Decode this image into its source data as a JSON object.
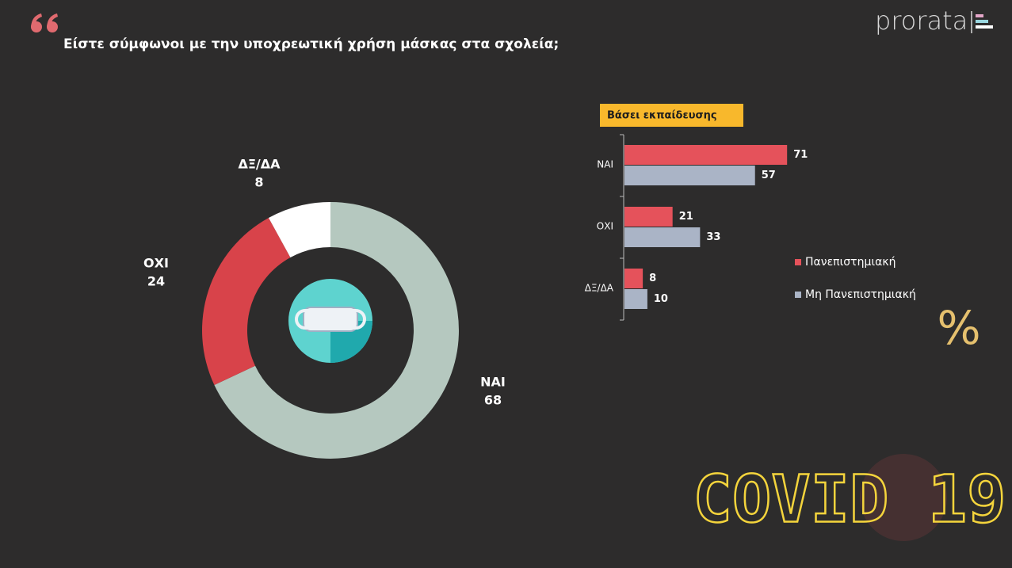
{
  "title": "Είστε σύμφωνοι με την υποχρεωτική χρήση μάσκας στα σχολεία;",
  "brand": "prorata",
  "percent_icon": "%",
  "badge": "COVID 19",
  "chart_data": [
    {
      "type": "donut",
      "categories": [
        "ΝΑΙ",
        "ΟΧΙ",
        "ΔΞ/ΔΑ"
      ],
      "values": [
        68,
        24,
        8
      ],
      "colors": [
        "#b5c8bf",
        "#d8434a",
        "#ffffff"
      ]
    },
    {
      "type": "hbar",
      "subtitle": "Βάσει εκπαίδευσης",
      "categories": [
        "ΝΑΙ",
        "ΟΧΙ",
        "ΔΞ/ΔΑ"
      ],
      "series": [
        {
          "name": "Πανεπιστημιακή",
          "color": "#e5525b",
          "values": [
            71,
            21,
            8
          ]
        },
        {
          "name": "Μη Πανεπιστημιακή",
          "color": "#aab4c6",
          "values": [
            57,
            33,
            10
          ]
        }
      ]
    }
  ]
}
